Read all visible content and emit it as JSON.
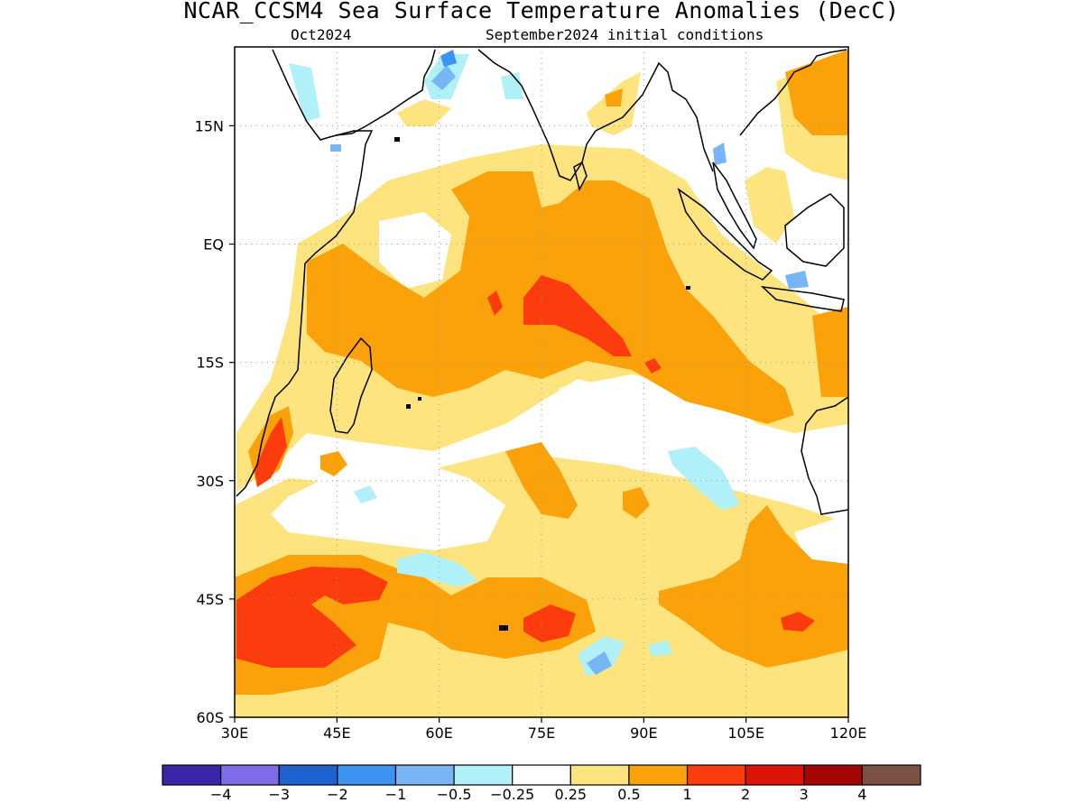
{
  "title": "NCAR_CCSM4 Sea Surface Temperature Anomalies (DecC)",
  "subtitle_left": "Oct2024",
  "subtitle_right": "September2024 initial conditions",
  "map": {
    "lon_range": [
      30,
      120
    ],
    "lat_range": [
      -60,
      25
    ],
    "lon_ticks": [
      {
        "value": 30,
        "label": "30E"
      },
      {
        "value": 45,
        "label": "45E"
      },
      {
        "value": 60,
        "label": "60E"
      },
      {
        "value": 75,
        "label": "75E"
      },
      {
        "value": 90,
        "label": "90E"
      },
      {
        "value": 105,
        "label": "105E"
      },
      {
        "value": 120,
        "label": "120E"
      }
    ],
    "lat_ticks": [
      {
        "value": 15,
        "label": "15N"
      },
      {
        "value": 0,
        "label": "EQ"
      },
      {
        "value": -15,
        "label": "15S"
      },
      {
        "value": -30,
        "label": "30S"
      },
      {
        "value": -45,
        "label": "45S"
      },
      {
        "value": -60,
        "label": "60S"
      }
    ],
    "grid": true
  },
  "colorbar": {
    "colors": [
      "#3a25a8",
      "#7e6ce8",
      "#1e62d0",
      "#3d93f0",
      "#78b5f5",
      "#b0f0f8",
      "#ffffff",
      "#fde47f",
      "#fba20a",
      "#fc3c0c",
      "#de1308",
      "#a30505",
      "#7a5143"
    ],
    "labels": [
      "−4",
      "−3",
      "−2",
      "−1",
      "−0.5",
      "−0.25",
      "0.25",
      "0.5",
      "1",
      "2",
      "3",
      "4"
    ]
  }
}
